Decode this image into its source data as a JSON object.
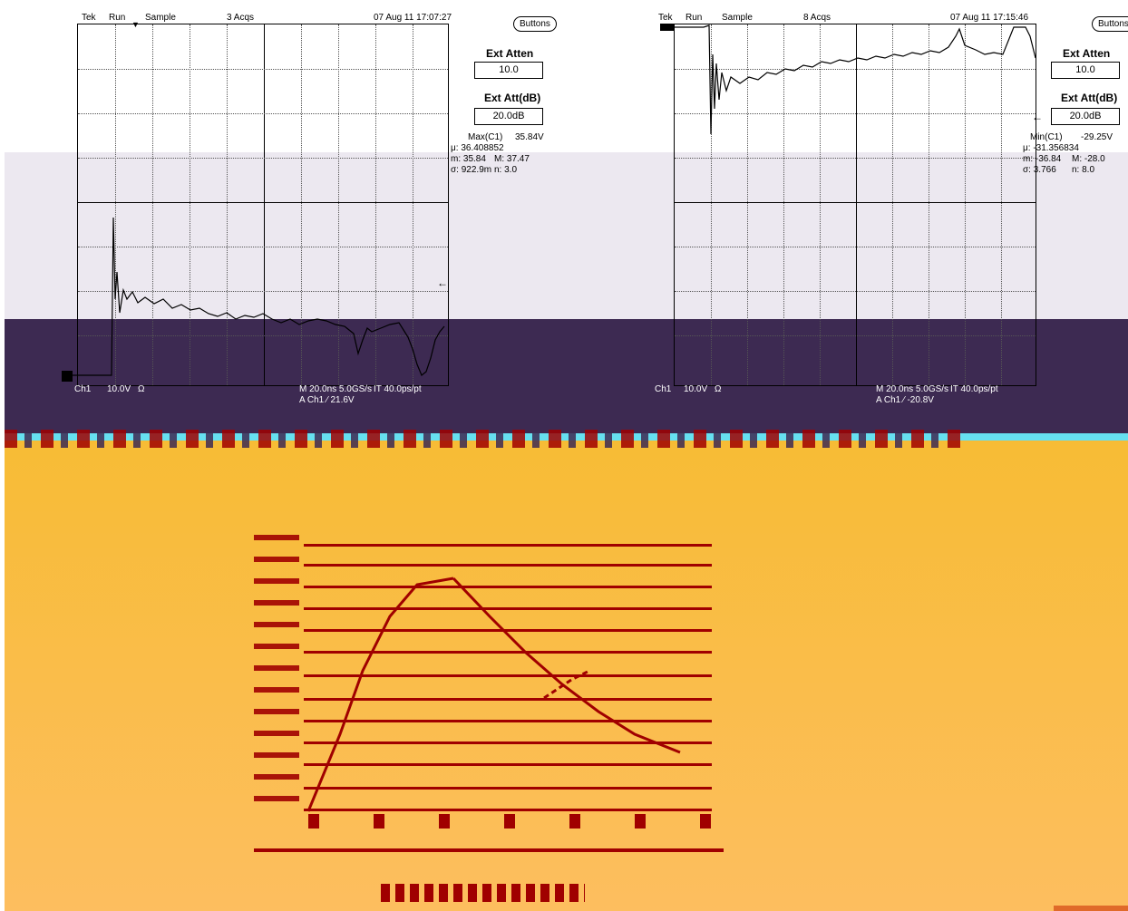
{
  "colors": {
    "lavender": "#ece8f0",
    "purple": "#3d2a52",
    "cyan_strip": "#66e0f0",
    "gold_top": "#f7bc35",
    "gold_bottom": "#fdbe5f",
    "plot_red": "#a00000"
  },
  "scope_left": {
    "tek": "Tek",
    "run": "Run",
    "mode": "Sample",
    "acqs": "3 Acqs",
    "datetime": "07 Aug 11 17:07:27",
    "buttons_label": "Buttons",
    "ext_atten_label": "Ext Atten",
    "ext_atten_value": "10.0",
    "ext_att_db_label": "Ext Att(dB)",
    "ext_att_db_value": "20.0dB",
    "meas_name": "Max(C1)",
    "meas_value": "35.84V",
    "mu": "μ: 36.408852",
    "m_line": "m: 35.84",
    "M_line": "M: 37.47",
    "sigma": "σ: 922.9m",
    "n": "n: 3.0",
    "ch": "Ch1",
    "volts": "10.0V",
    "ohm": "Ω",
    "timebase": "M 20.0ns 5.0GS/s",
    "pts": "IT 40.0ps/pt",
    "trigger": "A Ch1 ⁄ 21.6V"
  },
  "scope_right": {
    "tek": "Tek",
    "run": "Run",
    "mode": "Sample",
    "acqs": "8 Acqs",
    "datetime": "07 Aug 11 17:15:46",
    "buttons_label": "Buttons",
    "ext_atten_label": "Ext Atten",
    "ext_atten_value": "10.0",
    "ext_att_db_label": "Ext Att(dB)",
    "ext_att_db_value": "20.0dB",
    "meas_name": "Min(C1)",
    "meas_value": "-29.25V",
    "mu": "μ: -31.356834",
    "m_line": "m: -36.84",
    "M_line": "M: -28.0",
    "sigma": "σ: 3.766",
    "n": "n: 8.0",
    "ch": "Ch1",
    "volts": "10.0V",
    "ohm": "Ω",
    "timebase": "M 20.0ns 5.0GS/s",
    "pts": "IT 40.0ps/pt",
    "trigger": "A Ch1 ⁄ -20.8V"
  }
}
